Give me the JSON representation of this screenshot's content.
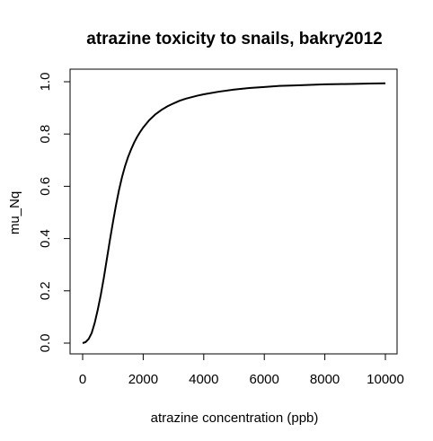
{
  "chart_data": {
    "type": "line",
    "title": "atrazine toxicity to snails, bakry2012",
    "xlabel": "atrazine concentration (ppb)",
    "ylabel": "mu_Nq",
    "xlim": [
      0,
      10000
    ],
    "ylim": [
      0,
      1
    ],
    "x_ticks": [
      0,
      2000,
      4000,
      6000,
      8000,
      10000
    ],
    "x_tick_labels": [
      "0",
      "2000",
      "4000",
      "6000",
      "8000",
      "10000"
    ],
    "y_ticks": [
      0,
      0.2,
      0.4,
      0.6,
      0.8,
      1
    ],
    "y_tick_labels": [
      "0.0",
      "0.2",
      "0.4",
      "0.6",
      "0.8",
      "1.0"
    ],
    "grid": false,
    "series": [
      {
        "x": [
          0,
          100,
          200,
          300,
          400,
          500,
          600,
          700,
          800,
          900,
          1000,
          1100,
          1200,
          1300,
          1400,
          1500,
          1600,
          1700,
          1800,
          1900,
          2000,
          2200,
          2400,
          2600,
          2800,
          3000,
          3200,
          3400,
          3600,
          3800,
          4000,
          4500,
          5000,
          5500,
          6000,
          6500,
          7000,
          7500,
          8000,
          8500,
          9000,
          9500,
          10000
        ],
        "values": [
          0.0,
          0.004,
          0.016,
          0.039,
          0.078,
          0.128,
          0.185,
          0.25,
          0.322,
          0.394,
          0.462,
          0.527,
          0.585,
          0.635,
          0.677,
          0.712,
          0.741,
          0.767,
          0.789,
          0.808,
          0.825,
          0.853,
          0.875,
          0.892,
          0.906,
          0.917,
          0.927,
          0.935,
          0.941,
          0.947,
          0.952,
          0.962,
          0.97,
          0.976,
          0.98,
          0.984,
          0.986,
          0.988,
          0.99,
          0.991,
          0.992,
          0.993,
          0.994
        ]
      }
    ]
  }
}
